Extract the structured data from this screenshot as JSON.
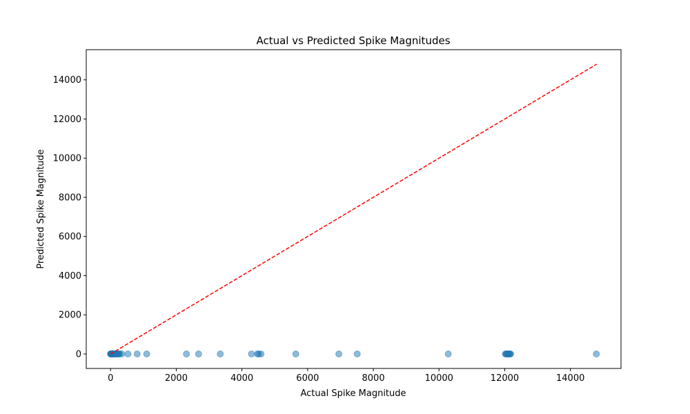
{
  "chart_data": {
    "type": "scatter",
    "title": "Actual vs Predicted Spike Magnitudes",
    "xlabel": "Actual Spike Magnitude",
    "ylabel": "Predicted Spike Magnitude",
    "xlim": [
      -740,
      15540
    ],
    "ylim": [
      -740,
      15540
    ],
    "xticks": [
      0,
      2000,
      4000,
      6000,
      8000,
      10000,
      12000,
      14000
    ],
    "yticks": [
      0,
      2000,
      4000,
      6000,
      8000,
      10000,
      12000,
      14000
    ],
    "grid": false,
    "point_color": "#1f77b4",
    "point_alpha": 0.5,
    "reference_line": {
      "style": "dashed",
      "color": "#ff0000",
      "from": [
        0,
        0
      ],
      "to": [
        14800,
        14800
      ]
    },
    "points": [
      {
        "x": 0,
        "y": 0
      },
      {
        "x": 5,
        "y": 5
      },
      {
        "x": 10,
        "y": 0
      },
      {
        "x": 15,
        "y": 10
      },
      {
        "x": 20,
        "y": 0
      },
      {
        "x": 25,
        "y": 5
      },
      {
        "x": 30,
        "y": 0
      },
      {
        "x": 40,
        "y": 8
      },
      {
        "x": 50,
        "y": 0
      },
      {
        "x": 60,
        "y": 5
      },
      {
        "x": 70,
        "y": 0
      },
      {
        "x": 80,
        "y": 5
      },
      {
        "x": 90,
        "y": 0
      },
      {
        "x": 100,
        "y": 10
      },
      {
        "x": 110,
        "y": 0
      },
      {
        "x": 120,
        "y": 5
      },
      {
        "x": 130,
        "y": 0
      },
      {
        "x": 150,
        "y": 5
      },
      {
        "x": 170,
        "y": 0
      },
      {
        "x": 190,
        "y": 5
      },
      {
        "x": 210,
        "y": 0
      },
      {
        "x": 230,
        "y": 5
      },
      {
        "x": 250,
        "y": 0
      },
      {
        "x": 280,
        "y": 5
      },
      {
        "x": 340,
        "y": 0
      },
      {
        "x": 530,
        "y": 0
      },
      {
        "x": 810,
        "y": 0
      },
      {
        "x": 1100,
        "y": 0
      },
      {
        "x": 2310,
        "y": 0
      },
      {
        "x": 2680,
        "y": 0
      },
      {
        "x": 3340,
        "y": 0
      },
      {
        "x": 4290,
        "y": 0
      },
      {
        "x": 4470,
        "y": 0
      },
      {
        "x": 4510,
        "y": 0
      },
      {
        "x": 4580,
        "y": 0
      },
      {
        "x": 5640,
        "y": 0
      },
      {
        "x": 6950,
        "y": 0
      },
      {
        "x": 7510,
        "y": 0
      },
      {
        "x": 10280,
        "y": 0
      },
      {
        "x": 12020,
        "y": 0
      },
      {
        "x": 12040,
        "y": 0
      },
      {
        "x": 12060,
        "y": 0
      },
      {
        "x": 12080,
        "y": 0
      },
      {
        "x": 12100,
        "y": 0
      },
      {
        "x": 12120,
        "y": 0
      },
      {
        "x": 12140,
        "y": 0
      },
      {
        "x": 12160,
        "y": 0
      },
      {
        "x": 12180,
        "y": 0
      },
      {
        "x": 14790,
        "y": 0
      }
    ]
  }
}
